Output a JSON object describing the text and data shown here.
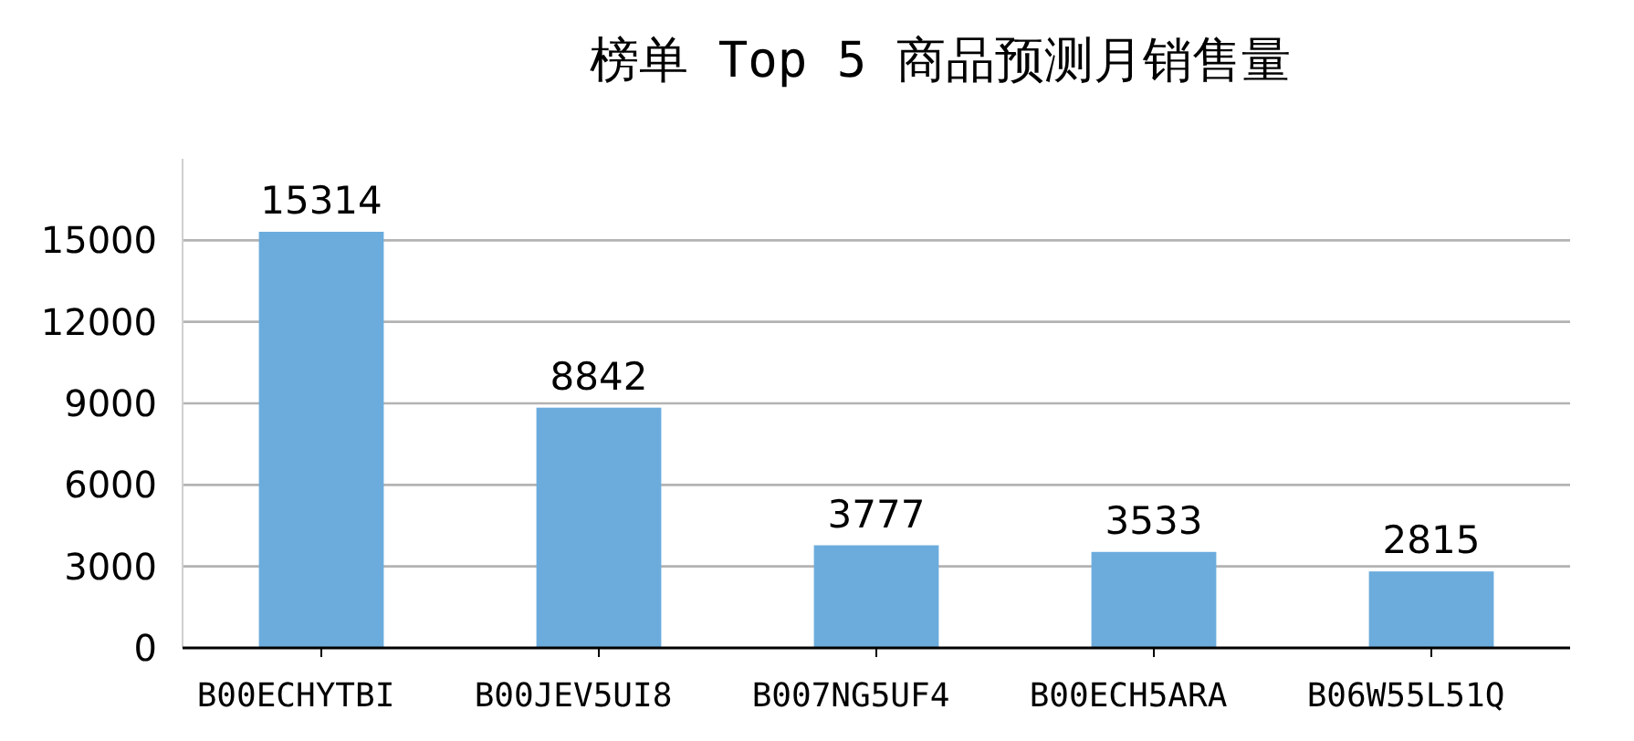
{
  "chart_data": {
    "type": "bar",
    "title": "榜单 Top 5 商品预测月销售量",
    "categories": [
      "B00ECHYTBI",
      "B00JEV5UI8",
      "B007NG5UF4",
      "B00ECH5ARA",
      "B06W55L51Q"
    ],
    "values": [
      15314,
      8842,
      3777,
      3533,
      2815
    ],
    "color": "#6cacdd",
    "ylim": [
      0,
      18000
    ],
    "yticks": [
      0,
      3000,
      6000,
      9000,
      12000,
      15000
    ],
    "grid": "y",
    "data_labels": true
  }
}
